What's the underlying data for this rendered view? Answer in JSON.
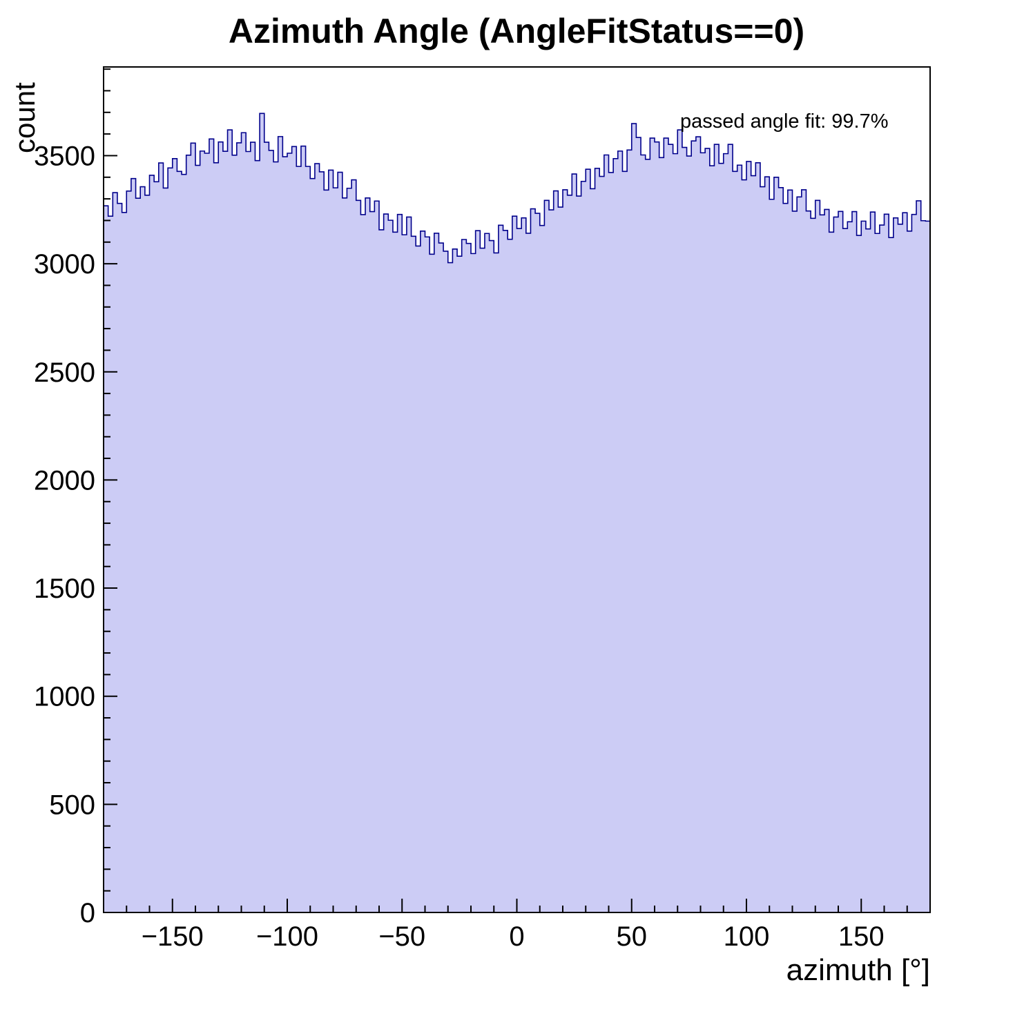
{
  "chart_data": {
    "type": "bar",
    "title": "Azimuth Angle (AngleFitStatus==0)",
    "xlabel": "azimuth [°]",
    "ylabel": "count",
    "annotation": "passed angle fit: 99.7%",
    "xlim": [
      -180,
      180
    ],
    "ylim": [
      0,
      3910
    ],
    "x_start": -180,
    "bin_width": 2,
    "x_minor_step": 10,
    "x_major_step": 50,
    "y_minor_step": 100,
    "y_major_step": 500,
    "x_ticks": {
      "values": [
        -150,
        -100,
        -50,
        0,
        50,
        100,
        150
      ],
      "labels": [
        "−150",
        "−100",
        "−50",
        "0",
        "50",
        "100",
        "150"
      ]
    },
    "y_ticks": {
      "values": [
        0,
        500,
        1000,
        1500,
        2000,
        2500,
        3000,
        3500
      ],
      "labels": [
        "0",
        "500",
        "1000",
        "1500",
        "2000",
        "2500",
        "3000",
        "3500"
      ]
    },
    "legend_position": "none",
    "grid": false,
    "colors": {
      "fill": "#ccccf5",
      "line": "#00008b",
      "frame": "#000000",
      "text": "#000000"
    },
    "values": [
      3268,
      3220,
      3329,
      3279,
      3237,
      3336,
      3394,
      3303,
      3356,
      3317,
      3409,
      3379,
      3466,
      3350,
      3443,
      3486,
      3427,
      3413,
      3502,
      3558,
      3455,
      3521,
      3511,
      3577,
      3467,
      3563,
      3520,
      3619,
      3502,
      3559,
      3606,
      3519,
      3562,
      3477,
      3695,
      3562,
      3524,
      3471,
      3588,
      3495,
      3511,
      3542,
      3450,
      3544,
      3450,
      3394,
      3463,
      3425,
      3341,
      3433,
      3351,
      3423,
      3304,
      3349,
      3388,
      3293,
      3227,
      3304,
      3241,
      3290,
      3157,
      3230,
      3201,
      3146,
      3228,
      3134,
      3216,
      3127,
      3082,
      3151,
      3124,
      3044,
      3141,
      3096,
      3058,
      3005,
      3068,
      3035,
      3112,
      3094,
      3047,
      3153,
      3072,
      3140,
      3107,
      3050,
      3178,
      3154,
      3113,
      3220,
      3163,
      3212,
      3141,
      3254,
      3233,
      3177,
      3293,
      3249,
      3337,
      3262,
      3342,
      3317,
      3415,
      3313,
      3381,
      3437,
      3347,
      3441,
      3404,
      3503,
      3422,
      3486,
      3521,
      3427,
      3526,
      3648,
      3584,
      3503,
      3483,
      3581,
      3563,
      3491,
      3581,
      3552,
      3509,
      3619,
      3538,
      3498,
      3568,
      3587,
      3513,
      3533,
      3453,
      3552,
      3464,
      3509,
      3552,
      3427,
      3456,
      3388,
      3473,
      3407,
      3467,
      3356,
      3402,
      3298,
      3400,
      3352,
      3279,
      3341,
      3243,
      3309,
      3342,
      3244,
      3210,
      3293,
      3226,
      3251,
      3146,
      3216,
      3242,
      3163,
      3194,
      3241,
      3131,
      3197,
      3161,
      3239,
      3140,
      3179,
      3229,
      3121,
      3212,
      3183,
      3236,
      3151,
      3228,
      3291,
      3199,
      3197
    ]
  }
}
